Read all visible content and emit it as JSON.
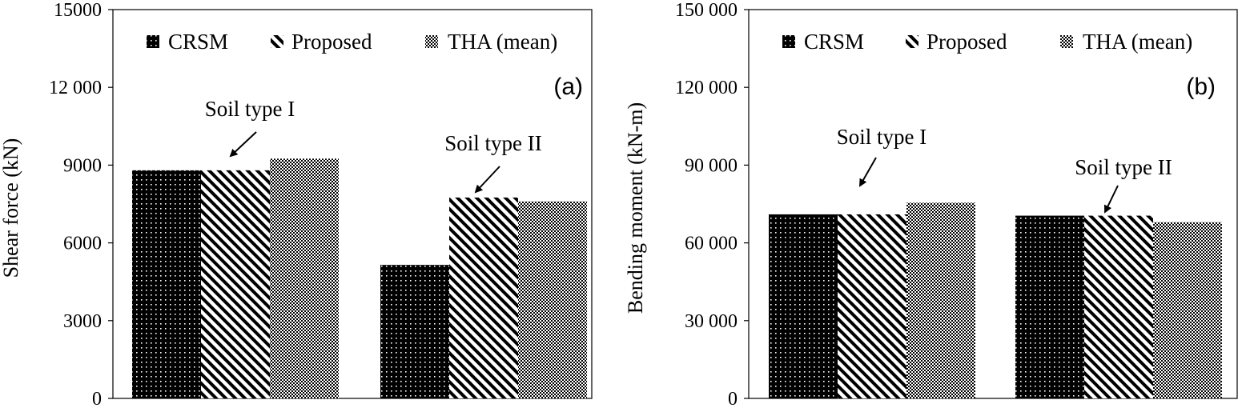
{
  "legend": [
    {
      "name": "CRSM",
      "pattern": "dots"
    },
    {
      "name": "Proposed",
      "pattern": "hatch"
    },
    {
      "name": "THA (mean)",
      "pattern": "checker"
    }
  ],
  "colors": {
    "bar_fill": "#000000",
    "pattern_fg": "#ffffff",
    "frame": "#000000"
  },
  "chart_data": [
    {
      "type": "bar",
      "panel_label": "(a)",
      "title": "",
      "xlabel": "",
      "ylabel": "Shear force (kN)",
      "ylim": [
        0,
        15000
      ],
      "yticks": [
        0,
        3000,
        6000,
        9000,
        12000,
        15000
      ],
      "ytick_labels": [
        "0",
        "3000",
        "6000",
        "9000",
        "12 000",
        "15000"
      ],
      "grid": false,
      "legend_position": "top",
      "categories": [
        "Soil type I",
        "Soil type II"
      ],
      "series": [
        {
          "name": "CRSM",
          "values": [
            8800,
            5150
          ]
        },
        {
          "name": "Proposed",
          "values": [
            8800,
            7750
          ]
        },
        {
          "name": "THA (mean)",
          "values": [
            9250,
            7600
          ]
        }
      ],
      "annotations": [
        {
          "text": "Soil type I",
          "category": 0,
          "series": 1
        },
        {
          "text": "Soil type II",
          "category": 1,
          "series": 1
        }
      ]
    },
    {
      "type": "bar",
      "panel_label": "(b)",
      "title": "",
      "xlabel": "",
      "ylabel": "Bending moment (kN-m)",
      "ylim": [
        0,
        150000
      ],
      "yticks": [
        0,
        30000,
        60000,
        90000,
        120000,
        150000
      ],
      "ytick_labels": [
        "0",
        "30 000",
        "60 000",
        "90 000",
        "120 000",
        "150 000"
      ],
      "grid": false,
      "legend_position": "top",
      "categories": [
        "Soil type I",
        "Soil type II"
      ],
      "series": [
        {
          "name": "CRSM",
          "values": [
            71000,
            70500
          ]
        },
        {
          "name": "Proposed",
          "values": [
            71000,
            70500
          ]
        },
        {
          "name": "THA (mean)",
          "values": [
            75500,
            68000
          ]
        }
      ],
      "annotations": [
        {
          "text": "Soil type I",
          "category": 0,
          "series": 1
        },
        {
          "text": "Soil type II",
          "category": 1,
          "series": 1
        }
      ]
    }
  ]
}
